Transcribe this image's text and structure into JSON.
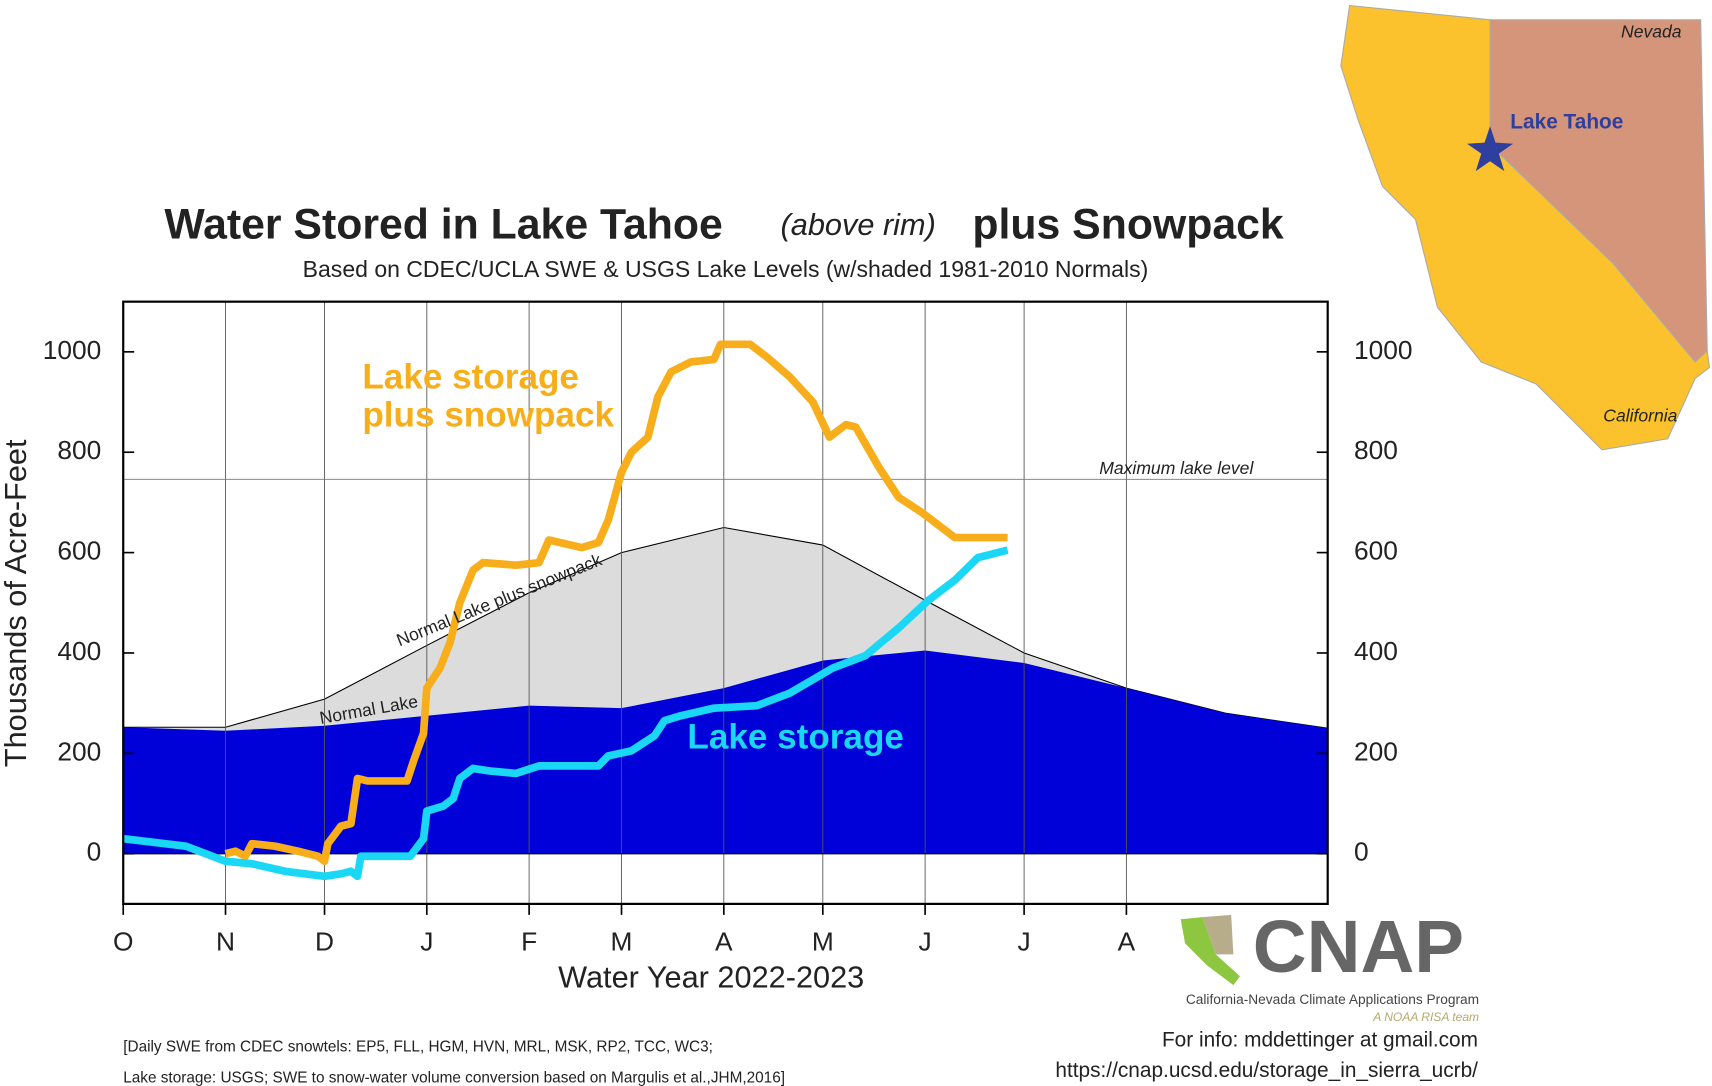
{
  "chart_data": {
    "type": "line",
    "title": "Water Stored in Lake Tahoe",
    "title_note": "(above rim)",
    "title_tail": "plus Snowpack",
    "subtitle": "Based on CDEC/UCLA SWE & USGS Lake Levels (w/shaded 1981-2010 Normals)",
    "x_label": "Water Year 2022-2023",
    "y_label": "Thousands of Acre-Feet",
    "xlim": [
      0,
      365
    ],
    "xticks": [
      {
        "value": 0,
        "label": "O"
      },
      {
        "value": 31,
        "label": "N"
      },
      {
        "value": 61,
        "label": "D"
      },
      {
        "value": 92,
        "label": "J"
      },
      {
        "value": 123,
        "label": "F"
      },
      {
        "value": 151,
        "label": "M"
      },
      {
        "value": 182,
        "label": "A"
      },
      {
        "value": 212,
        "label": "M"
      },
      {
        "value": 243,
        "label": "J"
      },
      {
        "value": 273,
        "label": "J"
      },
      {
        "value": 304,
        "label": "A"
      }
    ],
    "ylim": [
      -100,
      1100
    ],
    "yticks": [
      0,
      200,
      400,
      600,
      800,
      1000
    ],
    "grid": true,
    "max_lake_level": {
      "value": 746,
      "label": "Maximum lake level"
    },
    "series": [
      {
        "name": "Normal Lake plus snowpack",
        "kind": "area",
        "color": "#dcdcdc",
        "x": [
          0,
          31,
          61,
          92,
          123,
          151,
          182,
          212,
          243,
          273,
          304,
          334,
          365
        ],
        "values": [
          252,
          252,
          308,
          415,
          520,
          600,
          650,
          615,
          505,
          400,
          330,
          280,
          250
        ]
      },
      {
        "name": "Normal Lake",
        "kind": "area",
        "color": "#0000d8",
        "x": [
          0,
          31,
          61,
          92,
          123,
          151,
          182,
          212,
          243,
          273,
          304,
          334,
          365
        ],
        "values": [
          252,
          245,
          255,
          275,
          295,
          290,
          330,
          385,
          405,
          380,
          330,
          280,
          250
        ]
      },
      {
        "name": "Lake storage plus snowpack",
        "kind": "line",
        "color": "#f7ae1a",
        "x": [
          31,
          34,
          37,
          39,
          46,
          53,
          59,
          61,
          62,
          66,
          69,
          71,
          74,
          86,
          88,
          91,
          92,
          96,
          99,
          102,
          106,
          109,
          119,
          126,
          129,
          139,
          144,
          147,
          151,
          154,
          159,
          162,
          166,
          172,
          179,
          181,
          190,
          195,
          202,
          209,
          214,
          219,
          222,
          229,
          235,
          242,
          252,
          262,
          268
        ],
        "values": [
          0,
          5,
          -5,
          20,
          15,
          5,
          -5,
          -15,
          20,
          55,
          60,
          150,
          145,
          145,
          185,
          240,
          330,
          370,
          420,
          500,
          565,
          580,
          575,
          580,
          625,
          610,
          620,
          665,
          760,
          800,
          830,
          910,
          960,
          980,
          985,
          1015,
          1015,
          990,
          950,
          900,
          830,
          855,
          850,
          770,
          710,
          680,
          630,
          630,
          630
        ]
      },
      {
        "name": "Lake storage",
        "kind": "line",
        "color": "#1ad8f5",
        "x": [
          0,
          19,
          31,
          39,
          49,
          61,
          66,
          69,
          71,
          72,
          82,
          87,
          91,
          92,
          97,
          100,
          102,
          106,
          111,
          119,
          126,
          136,
          144,
          147,
          154,
          161,
          164,
          169,
          179,
          192,
          202,
          215,
          225,
          235,
          244,
          252,
          259,
          268
        ],
        "values": [
          30,
          15,
          -15,
          -20,
          -35,
          -45,
          -40,
          -35,
          -45,
          -5,
          -5,
          -5,
          30,
          85,
          95,
          110,
          150,
          170,
          165,
          160,
          175,
          175,
          175,
          195,
          205,
          235,
          265,
          275,
          290,
          295,
          320,
          370,
          395,
          450,
          505,
          545,
          590,
          605
        ]
      }
    ],
    "footnote": [
      "[Daily SWE from CDEC snowtels: EP5, FLL, HGM, HVN, MRL, MSK, RP2, TCC, WC3;",
      "Lake storage: USGS; SWE to snow-water volume conversion based on Margulis et al.,JHM,2016]"
    ],
    "logo": {
      "name": "CNAP",
      "program": "California-Nevada Climate Applications Program",
      "team": "A NOAA RISA team"
    },
    "contact": [
      "For info: mddettinger at gmail.com",
      "https://cnap.ucsd.edu/storage_in_sierra_ucrb/"
    ],
    "map_labels": {
      "nevada": "Nevada",
      "lake": "Lake Tahoe",
      "california": "California"
    }
  }
}
